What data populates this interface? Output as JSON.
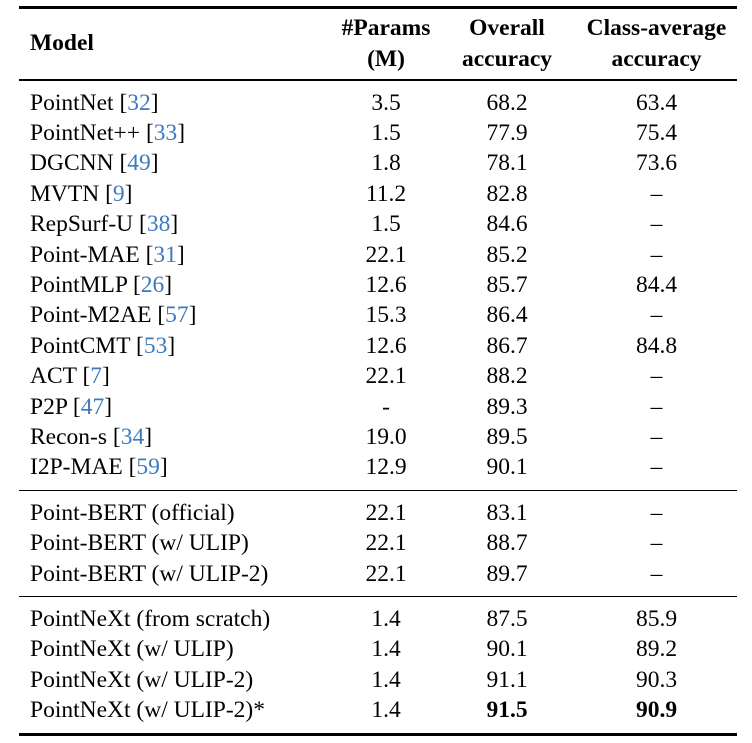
{
  "colors": {
    "cite": "#3d79bd",
    "text": "#000000",
    "rule": "#000000",
    "background": "#ffffff"
  },
  "table": {
    "columns": {
      "model": "Model",
      "params_line1": "#Params",
      "params_line2": "(M)",
      "overall_line1": "Overall",
      "overall_line2": "accuracy",
      "classavg_line1": "Class-average",
      "classavg_line2": "accuracy"
    },
    "cite_prefix": " [",
    "cite_suffix": "]",
    "sections": [
      {
        "rows": [
          {
            "model": "PointNet",
            "cite": "32",
            "params": "3.5",
            "overall": "68.2",
            "class_avg": "63.4"
          },
          {
            "model": "PointNet++",
            "cite": "33",
            "params": "1.5",
            "overall": "77.9",
            "class_avg": "75.4"
          },
          {
            "model": "DGCNN",
            "cite": "49",
            "params": "1.8",
            "overall": "78.1",
            "class_avg": "73.6"
          },
          {
            "model": "MVTN",
            "cite": "9",
            "params": "11.2",
            "overall": "82.8",
            "class_avg": "–"
          },
          {
            "model": "RepSurf-U",
            "cite": "38",
            "params": "1.5",
            "overall": "84.6",
            "class_avg": "–"
          },
          {
            "model": "Point-MAE",
            "cite": "31",
            "params": "22.1",
            "overall": "85.2",
            "class_avg": "–"
          },
          {
            "model": "PointMLP",
            "cite": "26",
            "params": "12.6",
            "overall": "85.7",
            "class_avg": "84.4"
          },
          {
            "model": "Point-M2AE",
            "cite": "57",
            "params": "15.3",
            "overall": "86.4",
            "class_avg": "–"
          },
          {
            "model": "PointCMT",
            "cite": "53",
            "params": "12.6",
            "overall": "86.7",
            "class_avg": "84.8"
          },
          {
            "model": "ACT",
            "cite": "7",
            "params": "22.1",
            "overall": "88.2",
            "class_avg": "–"
          },
          {
            "model": "P2P",
            "cite": "47",
            "params": "-",
            "overall": "89.3",
            "class_avg": "–"
          },
          {
            "model": "Recon-s",
            "cite": "34",
            "params": "19.0",
            "overall": "89.5",
            "class_avg": "–"
          },
          {
            "model": "I2P-MAE",
            "cite": "59",
            "params": "12.9",
            "overall": "90.1",
            "class_avg": "–"
          }
        ]
      },
      {
        "rows": [
          {
            "model": "Point-BERT (official)",
            "cite": null,
            "params": "22.1",
            "overall": "83.1",
            "class_avg": "–"
          },
          {
            "model": "Point-BERT (w/ ULIP)",
            "cite": null,
            "params": "22.1",
            "overall": "88.7",
            "class_avg": "–"
          },
          {
            "model": "Point-BERT (w/ ULIP-2)",
            "cite": null,
            "params": "22.1",
            "overall": "89.7",
            "class_avg": "–"
          }
        ]
      },
      {
        "rows": [
          {
            "model": "PointNeXt (from scratch)",
            "cite": null,
            "params": "1.4",
            "overall": "87.5",
            "class_avg": "85.9"
          },
          {
            "model": "PointNeXt (w/ ULIP)",
            "cite": null,
            "params": "1.4",
            "overall": "90.1",
            "class_avg": "89.2"
          },
          {
            "model": "PointNeXt (w/ ULIP-2)",
            "cite": null,
            "params": "1.4",
            "overall": "91.1",
            "class_avg": "90.3"
          },
          {
            "model": "PointNeXt (w/ ULIP-2)*",
            "cite": null,
            "params": "1.4",
            "overall": "91.5",
            "class_avg": "90.9",
            "bold_overall": true,
            "bold_class_avg": true
          }
        ]
      }
    ]
  }
}
